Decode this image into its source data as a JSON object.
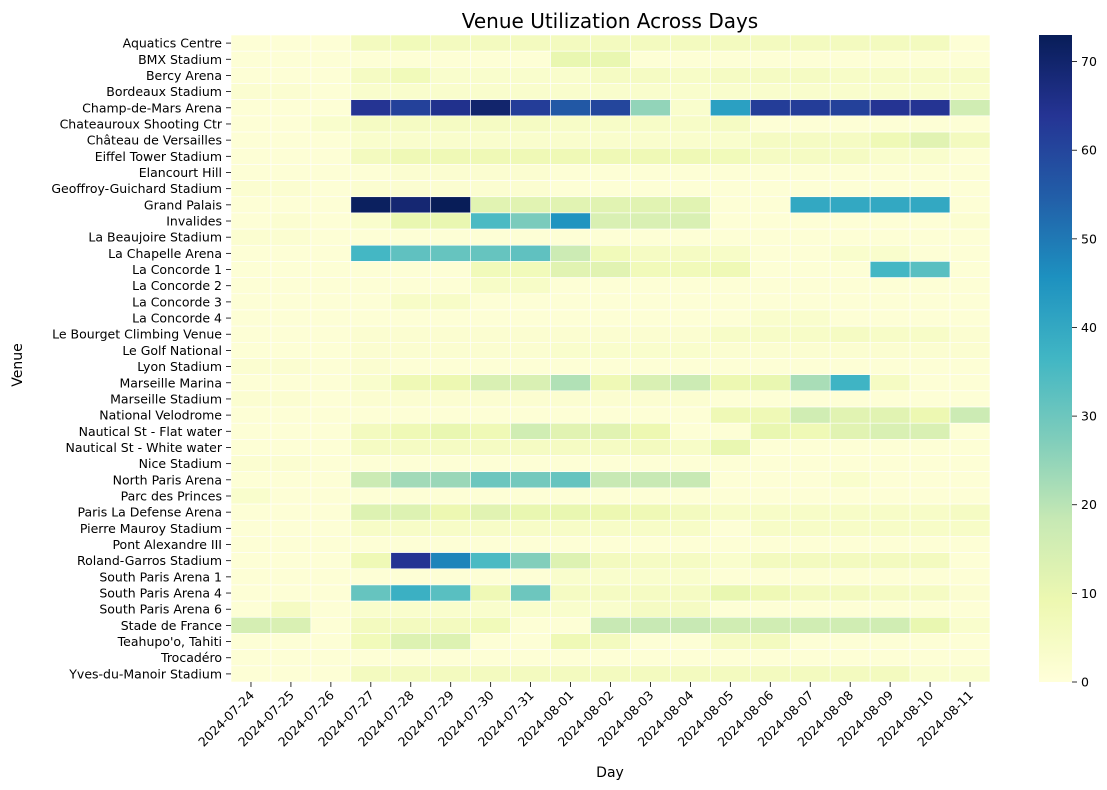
{
  "chart_data": {
    "type": "heatmap",
    "title": "Venue Utilization Across Days",
    "xlabel": "Day",
    "ylabel": "Venue",
    "colorbar": {
      "min": 0,
      "max": 73,
      "ticks": [
        0,
        10,
        20,
        30,
        40,
        50,
        60,
        70
      ],
      "colormap": "YlGnBu",
      "stops": [
        "#ffffd9",
        "#edf8b1",
        "#c7e9b4",
        "#7fcdbb",
        "#41b6c4",
        "#1d91c0",
        "#225ea8",
        "#253494",
        "#081d58"
      ]
    },
    "days": [
      "2024-07-24",
      "2024-07-25",
      "2024-07-26",
      "2024-07-27",
      "2024-07-28",
      "2024-07-29",
      "2024-07-30",
      "2024-07-31",
      "2024-08-01",
      "2024-08-02",
      "2024-08-03",
      "2024-08-04",
      "2024-08-05",
      "2024-08-06",
      "2024-08-07",
      "2024-08-08",
      "2024-08-09",
      "2024-08-10",
      "2024-08-11"
    ],
    "venues": [
      "Aquatics Centre",
      "BMX Stadium",
      "Bercy Arena",
      "Bordeaux Stadium",
      "Champ-de-Mars Arena",
      "Chateauroux Shooting Ctr",
      "Château de Versailles",
      "Eiffel Tower Stadium",
      "Elancourt Hill",
      "Geoffroy-Guichard Stadium",
      "Grand Palais",
      "Invalides",
      "La Beaujoire Stadium",
      "La Chapelle Arena",
      "La Concorde 1",
      "La Concorde 2",
      "La Concorde 3",
      "La Concorde 4",
      "Le Bourget Climbing Venue",
      "Le Golf National",
      "Lyon Stadium",
      "Marseille Marina",
      "Marseille Stadium",
      "National Velodrome",
      "Nautical St - Flat water",
      "Nautical St - White water",
      "Nice Stadium",
      "North Paris Arena",
      "Parc des Princes",
      "Paris La Defense Arena",
      "Pierre Mauroy Stadium",
      "Pont Alexandre III",
      "Roland-Garros Stadium",
      "South Paris Arena 1",
      "South Paris Arena 4",
      "South Paris Arena 6",
      "Stade de France",
      "Teahupo'o, Tahiti",
      "Trocadéro",
      "Yves-du-Manoir Stadium"
    ],
    "values": [
      [
        1,
        1,
        1,
        6,
        7,
        6,
        6,
        6,
        6,
        6,
        6,
        6,
        6,
        6,
        6,
        6,
        6,
        6,
        1
      ],
      [
        1,
        1,
        1,
        1,
        1,
        1,
        1,
        1,
        10,
        10,
        1,
        1,
        1,
        1,
        1,
        1,
        1,
        1,
        1
      ],
      [
        1,
        1,
        1,
        5,
        7,
        3,
        3,
        3,
        3,
        5,
        5,
        4,
        5,
        5,
        5,
        4,
        4,
        4,
        4
      ],
      [
        2,
        2,
        1,
        3,
        3,
        3,
        3,
        3,
        3,
        3,
        3,
        3,
        3,
        3,
        3,
        3,
        3,
        3,
        3
      ],
      [
        1,
        1,
        1,
        64,
        61,
        65,
        70,
        62,
        56,
        60,
        25,
        3,
        42,
        62,
        62,
        61,
        64,
        64,
        16
      ],
      [
        1,
        1,
        3,
        5,
        5,
        5,
        5,
        5,
        4,
        4,
        4,
        4,
        5,
        1,
        1,
        1,
        1,
        1,
        1
      ],
      [
        1,
        1,
        1,
        3,
        3,
        3,
        3,
        3,
        3,
        3,
        3,
        3,
        3,
        5,
        5,
        5,
        8,
        12,
        6
      ],
      [
        1,
        1,
        1,
        6,
        8,
        8,
        8,
        8,
        8,
        8,
        8,
        8,
        7,
        5,
        5,
        5,
        3,
        3,
        1
      ],
      [
        1,
        1,
        1,
        1,
        2,
        2,
        2,
        2,
        1,
        1,
        1,
        1,
        1,
        1,
        1,
        1,
        1,
        1,
        1
      ],
      [
        2,
        2,
        1,
        2,
        2,
        2,
        2,
        2,
        1,
        1,
        1,
        1,
        1,
        1,
        1,
        1,
        1,
        1,
        1
      ],
      [
        1,
        1,
        1,
        72,
        69,
        73,
        12,
        12,
        12,
        12,
        12,
        12,
        1,
        1,
        40,
        40,
        40,
        40,
        1
      ],
      [
        1,
        2,
        1,
        3,
        10,
        10,
        35,
        28,
        45,
        14,
        14,
        14,
        1,
        1,
        1,
        1,
        1,
        1,
        2
      ],
      [
        2,
        2,
        1,
        1,
        1,
        1,
        1,
        1,
        1,
        1,
        1,
        1,
        1,
        1,
        1,
        1,
        1,
        1,
        1
      ],
      [
        1,
        1,
        1,
        36,
        32,
        31,
        31,
        32,
        17,
        7,
        5,
        5,
        4,
        1,
        1,
        3,
        3,
        1,
        1
      ],
      [
        1,
        1,
        1,
        1,
        1,
        1,
        7,
        7,
        12,
        12,
        7,
        7,
        8,
        1,
        1,
        1,
        36,
        33,
        1
      ],
      [
        1,
        1,
        1,
        1,
        1,
        1,
        4,
        4,
        1,
        1,
        1,
        1,
        1,
        1,
        1,
        1,
        1,
        1,
        1
      ],
      [
        1,
        1,
        1,
        1,
        4,
        4,
        1,
        1,
        1,
        1,
        1,
        1,
        1,
        1,
        1,
        1,
        1,
        1,
        1
      ],
      [
        1,
        1,
        1,
        1,
        1,
        1,
        1,
        1,
        1,
        1,
        1,
        1,
        1,
        3,
        3,
        1,
        1,
        1,
        1
      ],
      [
        1,
        1,
        1,
        2,
        2,
        2,
        2,
        2,
        2,
        2,
        2,
        2,
        4,
        4,
        4,
        5,
        4,
        4,
        2
      ],
      [
        1,
        1,
        1,
        2,
        2,
        2,
        2,
        2,
        3,
        3,
        3,
        3,
        2,
        2,
        2,
        2,
        2,
        2,
        2
      ],
      [
        2,
        2,
        1,
        2,
        1,
        1,
        1,
        1,
        1,
        1,
        1,
        1,
        1,
        1,
        1,
        1,
        1,
        1,
        1
      ],
      [
        1,
        1,
        1,
        3,
        8,
        9,
        14,
        14,
        21,
        8,
        14,
        17,
        9,
        10,
        22,
        37,
        5,
        1,
        1
      ],
      [
        2,
        2,
        1,
        2,
        2,
        2,
        2,
        2,
        2,
        2,
        2,
        2,
        1,
        1,
        1,
        1,
        1,
        1,
        1
      ],
      [
        1,
        1,
        1,
        1,
        1,
        1,
        1,
        1,
        1,
        1,
        1,
        1,
        8,
        8,
        16,
        12,
        12,
        9,
        17
      ],
      [
        1,
        1,
        1,
        6,
        8,
        10,
        8,
        16,
        12,
        12,
        9,
        1,
        1,
        10,
        8,
        12,
        14,
        14,
        1
      ],
      [
        1,
        1,
        1,
        5,
        5,
        5,
        5,
        5,
        5,
        5,
        6,
        4,
        10,
        1,
        1,
        1,
        1,
        1,
        1
      ],
      [
        2,
        2,
        1,
        1,
        1,
        1,
        1,
        1,
        1,
        1,
        1,
        1,
        1,
        1,
        1,
        1,
        1,
        1,
        1
      ],
      [
        1,
        1,
        1,
        17,
        23,
        24,
        30,
        29,
        31,
        18,
        18,
        18,
        1,
        1,
        1,
        3,
        1,
        1,
        1
      ],
      [
        3,
        1,
        1,
        1,
        1,
        1,
        1,
        1,
        1,
        1,
        1,
        1,
        1,
        1,
        1,
        1,
        1,
        1,
        1
      ],
      [
        1,
        1,
        1,
        13,
        13,
        9,
        12,
        10,
        10,
        9,
        8,
        6,
        4,
        4,
        4,
        4,
        4,
        4,
        5
      ],
      [
        1,
        1,
        1,
        4,
        4,
        4,
        4,
        4,
        4,
        4,
        4,
        4,
        1,
        4,
        4,
        4,
        4,
        4,
        4
      ],
      [
        1,
        1,
        1,
        1,
        1,
        1,
        1,
        1,
        1,
        1,
        1,
        1,
        1,
        1,
        1,
        1,
        1,
        1,
        1
      ],
      [
        1,
        1,
        1,
        8,
        64,
        48,
        35,
        27,
        13,
        6,
        5,
        5,
        3,
        6,
        6,
        6,
        6,
        6,
        1
      ],
      [
        1,
        1,
        1,
        1,
        1,
        1,
        1,
        1,
        3,
        3,
        3,
        3,
        1,
        1,
        1,
        1,
        1,
        1,
        1
      ],
      [
        1,
        1,
        1,
        31,
        38,
        33,
        8,
        30,
        5,
        5,
        5,
        5,
        10,
        8,
        6,
        6,
        5,
        5,
        2
      ],
      [
        1,
        5,
        1,
        3,
        3,
        3,
        3,
        3,
        3,
        3,
        5,
        5,
        1,
        1,
        1,
        1,
        1,
        1,
        1
      ],
      [
        15,
        14,
        1,
        6,
        6,
        6,
        7,
        1,
        1,
        18,
        18,
        18,
        16,
        16,
        16,
        16,
        16,
        10,
        3
      ],
      [
        1,
        1,
        1,
        7,
        13,
        13,
        1,
        1,
        8,
        6,
        1,
        1,
        5,
        6,
        1,
        1,
        1,
        1,
        1
      ],
      [
        1,
        1,
        1,
        1,
        1,
        1,
        1,
        1,
        1,
        1,
        1,
        1,
        1,
        1,
        1,
        1,
        1,
        1,
        1
      ],
      [
        1,
        1,
        1,
        6,
        6,
        6,
        6,
        6,
        6,
        6,
        6,
        6,
        6,
        6,
        6,
        6,
        6,
        3,
        3
      ]
    ]
  }
}
